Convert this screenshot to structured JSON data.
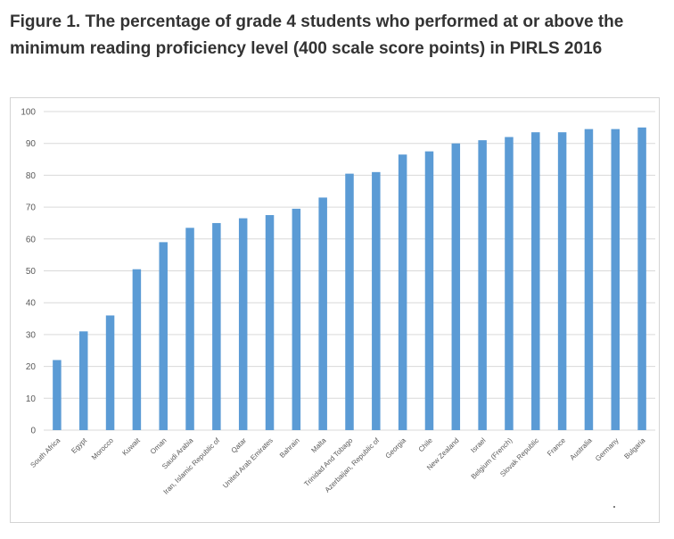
{
  "title": "Figure 1. The percentage of grade 4 students who performed at or above the minimum reading proficiency level (400 scale score points) in PIRLS 2016",
  "colors": {
    "bar": "#5b9bd5",
    "grid": "#d9d9d9",
    "text": "#595959"
  },
  "chart_data": {
    "type": "bar",
    "title": "Figure 1. The percentage of grade 4 students who performed at or above the minimum reading proficiency level (400 scale score points) in PIRLS 2016",
    "xlabel": "",
    "ylabel": "",
    "ylim": [
      0,
      100
    ],
    "yticks": [
      0,
      10,
      20,
      30,
      40,
      50,
      60,
      70,
      80,
      90,
      100
    ],
    "grid": true,
    "legend": "none",
    "categories": [
      "South Africa",
      "Egypt",
      "Morocco",
      "Kuwait",
      "Oman",
      "Saudi Arabia",
      "Iran, Islamic Republic of",
      "Qatar",
      "United Arab Emirates",
      "Bahrain",
      "Malta",
      "Trinidad And Tobago",
      "Azerbaijan, Republic of",
      "Georgia",
      "Chile",
      "New Zealand",
      "Israel",
      "Belgium (French)",
      "Slovak Republic",
      "France",
      "Australia",
      "Germany",
      "Bulgaria"
    ],
    "values": [
      22,
      31,
      36,
      50.5,
      59,
      63.5,
      65,
      66.5,
      67.5,
      69.5,
      73,
      80.5,
      81,
      86.5,
      87.5,
      90,
      91,
      92,
      93.5,
      93.5,
      94.5,
      94.5,
      95
    ]
  }
}
